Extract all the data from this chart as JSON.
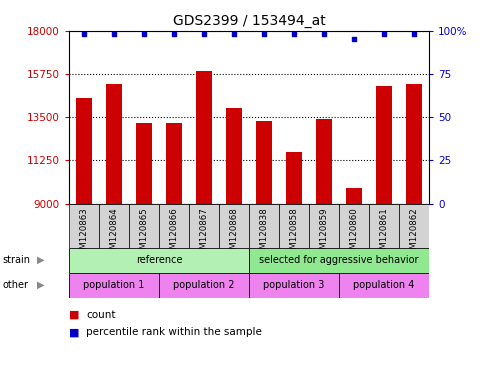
{
  "title": "GDS2399 / 153494_at",
  "samples": [
    "GSM120863",
    "GSM120864",
    "GSM120865",
    "GSM120866",
    "GSM120867",
    "GSM120868",
    "GSM120838",
    "GSM120858",
    "GSM120859",
    "GSM120860",
    "GSM120861",
    "GSM120862"
  ],
  "bar_values": [
    14500,
    15200,
    13200,
    13200,
    15900,
    14000,
    13300,
    11700,
    13400,
    9800,
    15100,
    15200
  ],
  "percentile_values": [
    98,
    98,
    98,
    98,
    98,
    98,
    98,
    98,
    98,
    95,
    98,
    98
  ],
  "ymin": 9000,
  "ymax": 18000,
  "yticks": [
    9000,
    11250,
    13500,
    15750,
    18000
  ],
  "right_yticks": [
    0,
    25,
    50,
    75,
    100
  ],
  "bar_color": "#cc0000",
  "dot_color": "#0000cc",
  "grid_color": "#000000",
  "xtick_bg": "#d3d3d3",
  "strain_row": [
    {
      "label": "reference",
      "color": "#b3f0b3",
      "start": 0,
      "end": 6
    },
    {
      "label": "selected for aggressive behavior",
      "color": "#90e890",
      "start": 6,
      "end": 12
    }
  ],
  "other_row": [
    {
      "label": "population 1",
      "color": "#ee82ee",
      "start": 0,
      "end": 3
    },
    {
      "label": "population 2",
      "color": "#ee82ee",
      "start": 3,
      "end": 6
    },
    {
      "label": "population 3",
      "color": "#ee82ee",
      "start": 6,
      "end": 9
    },
    {
      "label": "population 4",
      "color": "#ee82ee",
      "start": 9,
      "end": 12
    }
  ],
  "legend_count_color": "#cc0000",
  "legend_pct_color": "#0000cc",
  "bg_color": "#ffffff",
  "tick_label_color_left": "#cc0000",
  "tick_label_color_right": "#0000cc",
  "title_fontsize": 10
}
